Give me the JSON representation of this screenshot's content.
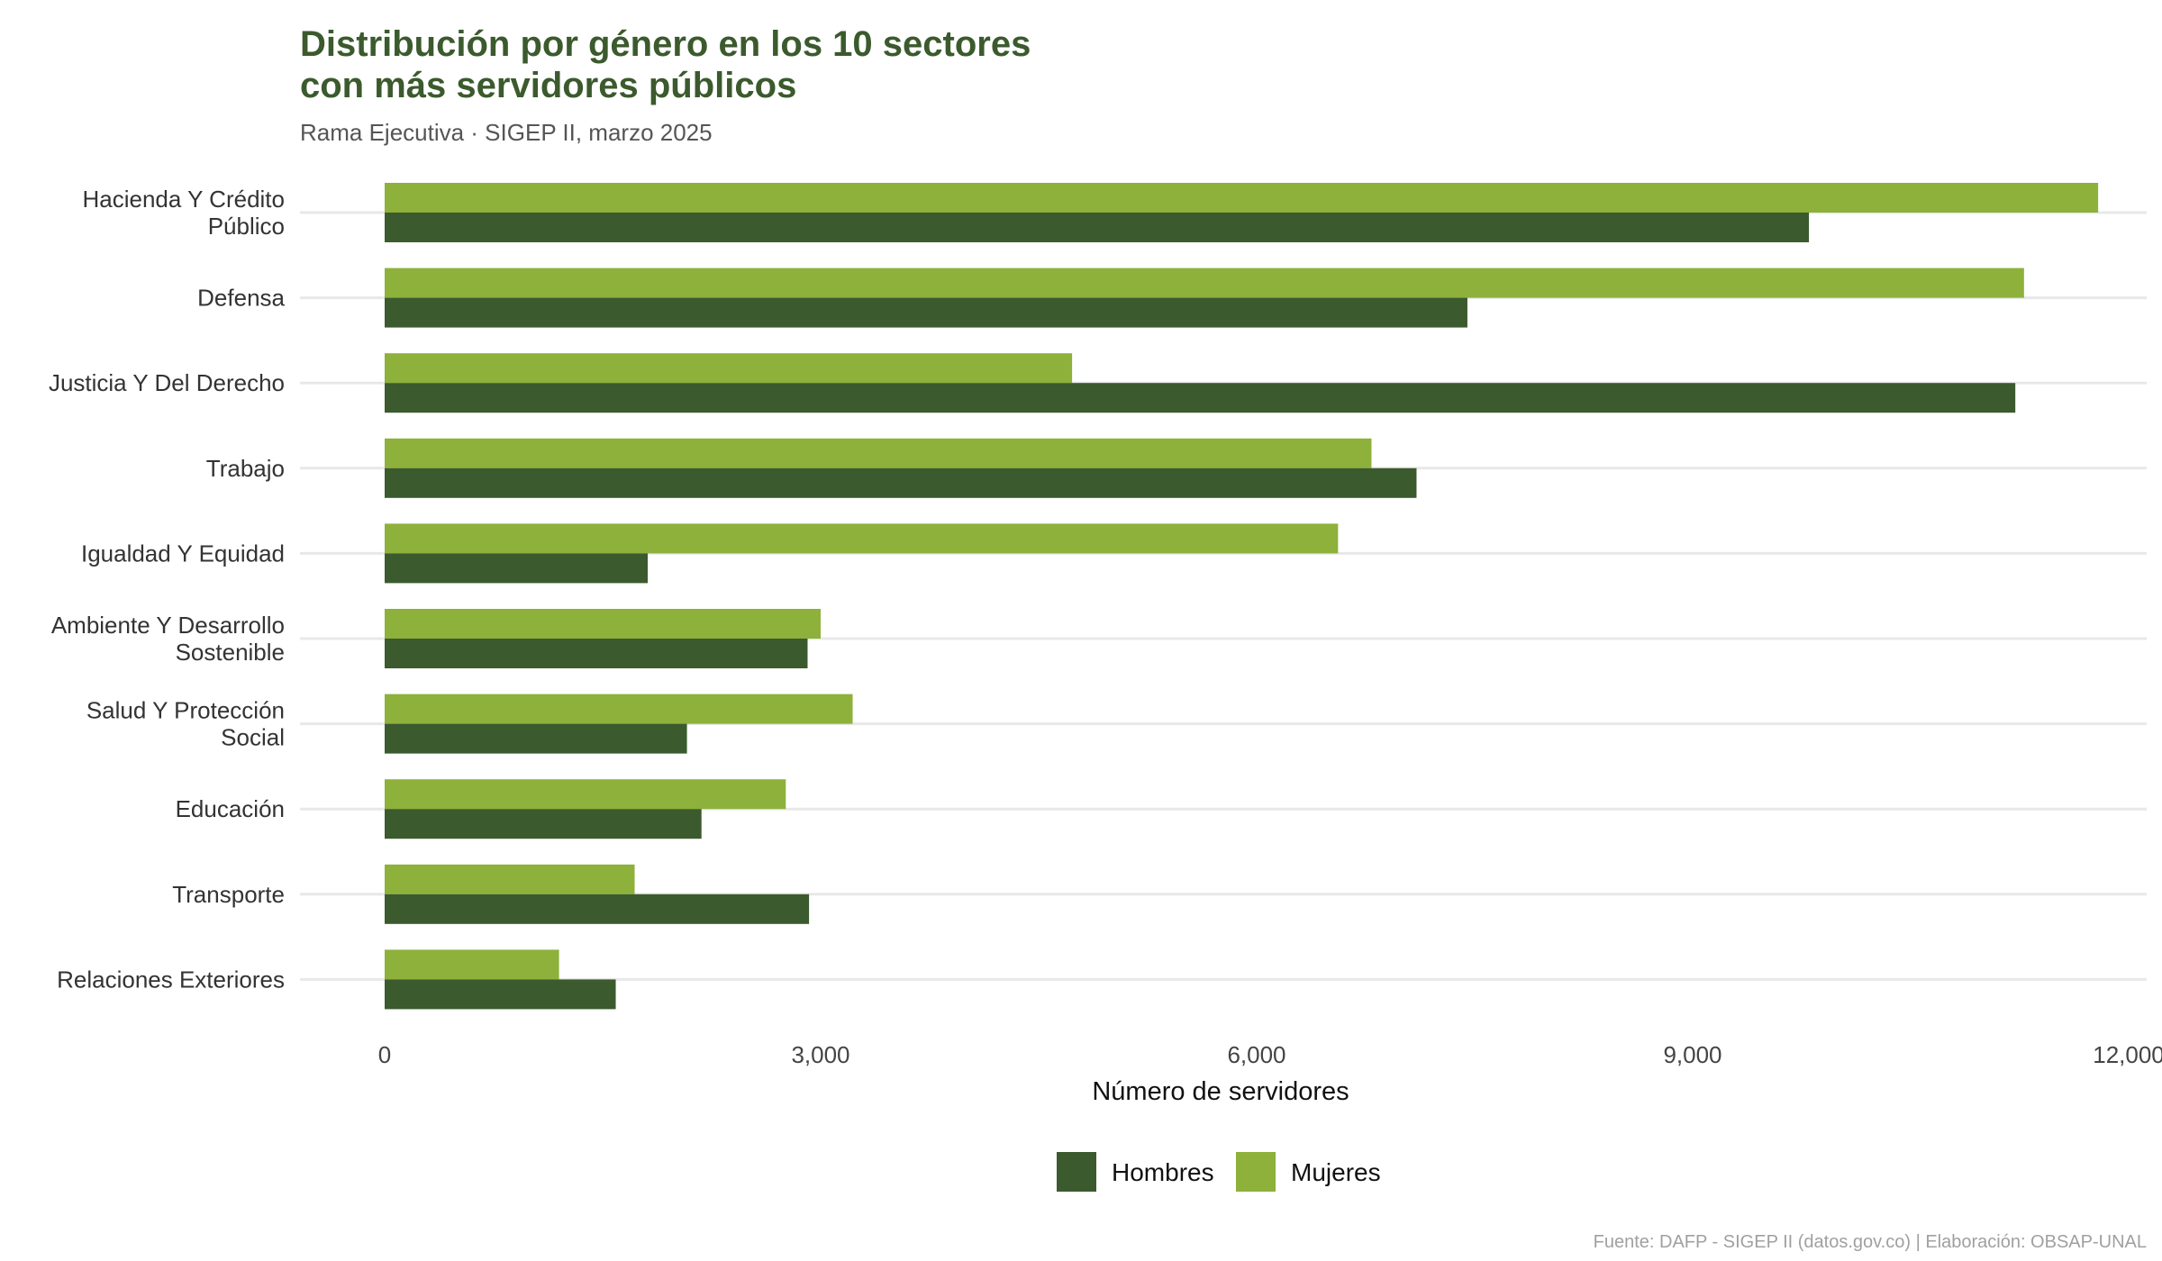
{
  "chart_data": {
    "type": "bar",
    "orientation": "horizontal",
    "title": [
      "Distribución por género en los 10 sectores",
      "con más servidores públicos"
    ],
    "subtitle": "Rama Ejecutiva · SIGEP II, marzo 2025",
    "xlabel": "Número de servidores",
    "caption": "Fuente: DAFP - SIGEP II (datos.gov.co) | Elaboración: OBSAP-UNAL",
    "xlim": [
      0,
      12000
    ],
    "xticks": [
      0,
      3000,
      6000,
      9000,
      12000
    ],
    "xtick_labels": [
      "0",
      "3,000",
      "6,000",
      "9,000",
      "12,000"
    ],
    "grid": true,
    "legend_position": "bottom",
    "categories": [
      [
        "Hacienda Y Crédito",
        "Público"
      ],
      [
        "Defensa"
      ],
      [
        "Justicia Y Del Derecho"
      ],
      [
        "Trabajo"
      ],
      [
        "Igualdad Y Equidad"
      ],
      [
        "Ambiente Y Desarrollo",
        "Sostenible"
      ],
      [
        "Salud Y Protección",
        "Social"
      ],
      [
        "Educación"
      ],
      [
        "Transporte"
      ],
      [
        "Relaciones Exteriores"
      ]
    ],
    "series": [
      {
        "name": "Hombres",
        "color": "#3b5a2d",
        "values": [
          9800,
          7450,
          11220,
          7100,
          1810,
          2910,
          2080,
          2180,
          2920,
          1590
        ]
      },
      {
        "name": "Mujeres",
        "color": "#8db13a",
        "values": [
          11790,
          11280,
          4730,
          6790,
          6560,
          3000,
          3220,
          2760,
          1720,
          1200
        ]
      }
    ]
  }
}
